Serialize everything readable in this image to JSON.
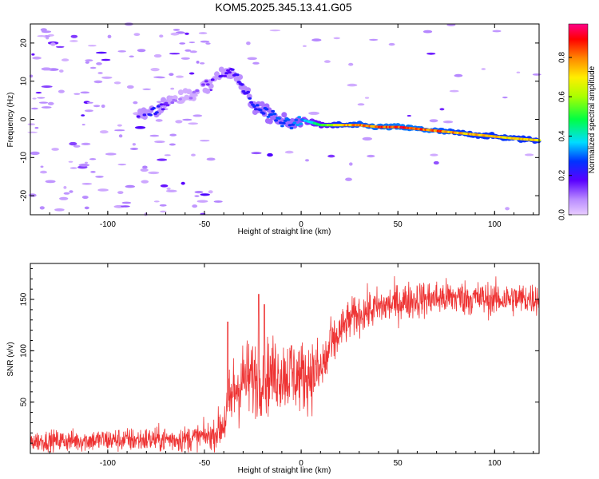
{
  "title": "KOM5.2025.345.13.41.G05",
  "chart_data": [
    {
      "type": "heatmap",
      "xlabel": "Height of straight line (km)",
      "ylabel": "Frequency (Hz)",
      "xlim": [
        -140,
        123
      ],
      "ylim": [
        -25,
        25
      ],
      "xticks": [
        -100,
        -50,
        0,
        50,
        100
      ],
      "yticks": [
        -20,
        -10,
        0,
        10,
        20
      ],
      "colorbar": {
        "label": "Normalized spectral amplitude",
        "range": [
          0,
          0.97
        ],
        "ticks": [
          0.0,
          0.2,
          0.4,
          0.6,
          0.8
        ]
      },
      "ridge": {
        "x": [
          -85,
          -75,
          -65,
          -55,
          -45,
          -35,
          -30,
          -25,
          -20,
          -15,
          -10,
          -5,
          0,
          10,
          20,
          30,
          40,
          50,
          60,
          70,
          80,
          90,
          100,
          110,
          123
        ],
        "y": [
          1.5,
          2.5,
          5,
          7,
          10.5,
          13,
          8,
          4,
          2,
          1,
          -0.5,
          -1.5,
          0,
          -1.5,
          -1.5,
          -1.5,
          -2,
          -2,
          -2.5,
          -3,
          -3.5,
          -4,
          -4.5,
          -5,
          -5.5
        ],
        "amplitude": [
          0.18,
          0.25,
          0.1,
          0.12,
          0.18,
          0.2,
          0.22,
          0.25,
          0.28,
          0.3,
          0.3,
          0.3,
          0.35,
          0.5,
          0.78,
          0.85,
          0.9,
          0.92,
          0.9,
          0.88,
          0.82,
          0.8,
          0.78,
          0.8,
          0.75
        ]
      }
    },
    {
      "type": "line",
      "xlabel": "Height of straight line (km)",
      "ylabel": "SNR (v/v)",
      "xlim": [
        -140,
        123
      ],
      "ylim": [
        0,
        185
      ],
      "xticks": [
        -100,
        -50,
        0,
        50,
        100
      ],
      "yticks": [
        50,
        100,
        150
      ],
      "color": "#ee3333",
      "trend": {
        "x": [
          -140,
          -100,
          -60,
          -45,
          -40,
          -35,
          -30,
          -20,
          -10,
          0,
          10,
          15,
          20,
          25,
          30,
          40,
          50,
          60,
          80,
          100,
          123
        ],
        "y": [
          12,
          13,
          14,
          18,
          30,
          60,
          72,
          75,
          78,
          75,
          80,
          100,
          118,
          130,
          136,
          142,
          147,
          150,
          152,
          150,
          151
        ]
      },
      "spikes": {
        "x": [
          -38,
          -22,
          -19,
          -5,
          15
        ],
        "y": [
          128,
          155,
          145,
          105,
          120
        ]
      },
      "noise_amplitude": [
        {
          "x": -140,
          "a": 9
        },
        {
          "x": -45,
          "a": 12
        },
        {
          "x": -35,
          "a": 35
        },
        {
          "x": 10,
          "a": 30
        },
        {
          "x": 20,
          "a": 18
        },
        {
          "x": 123,
          "a": 14
        }
      ]
    }
  ]
}
